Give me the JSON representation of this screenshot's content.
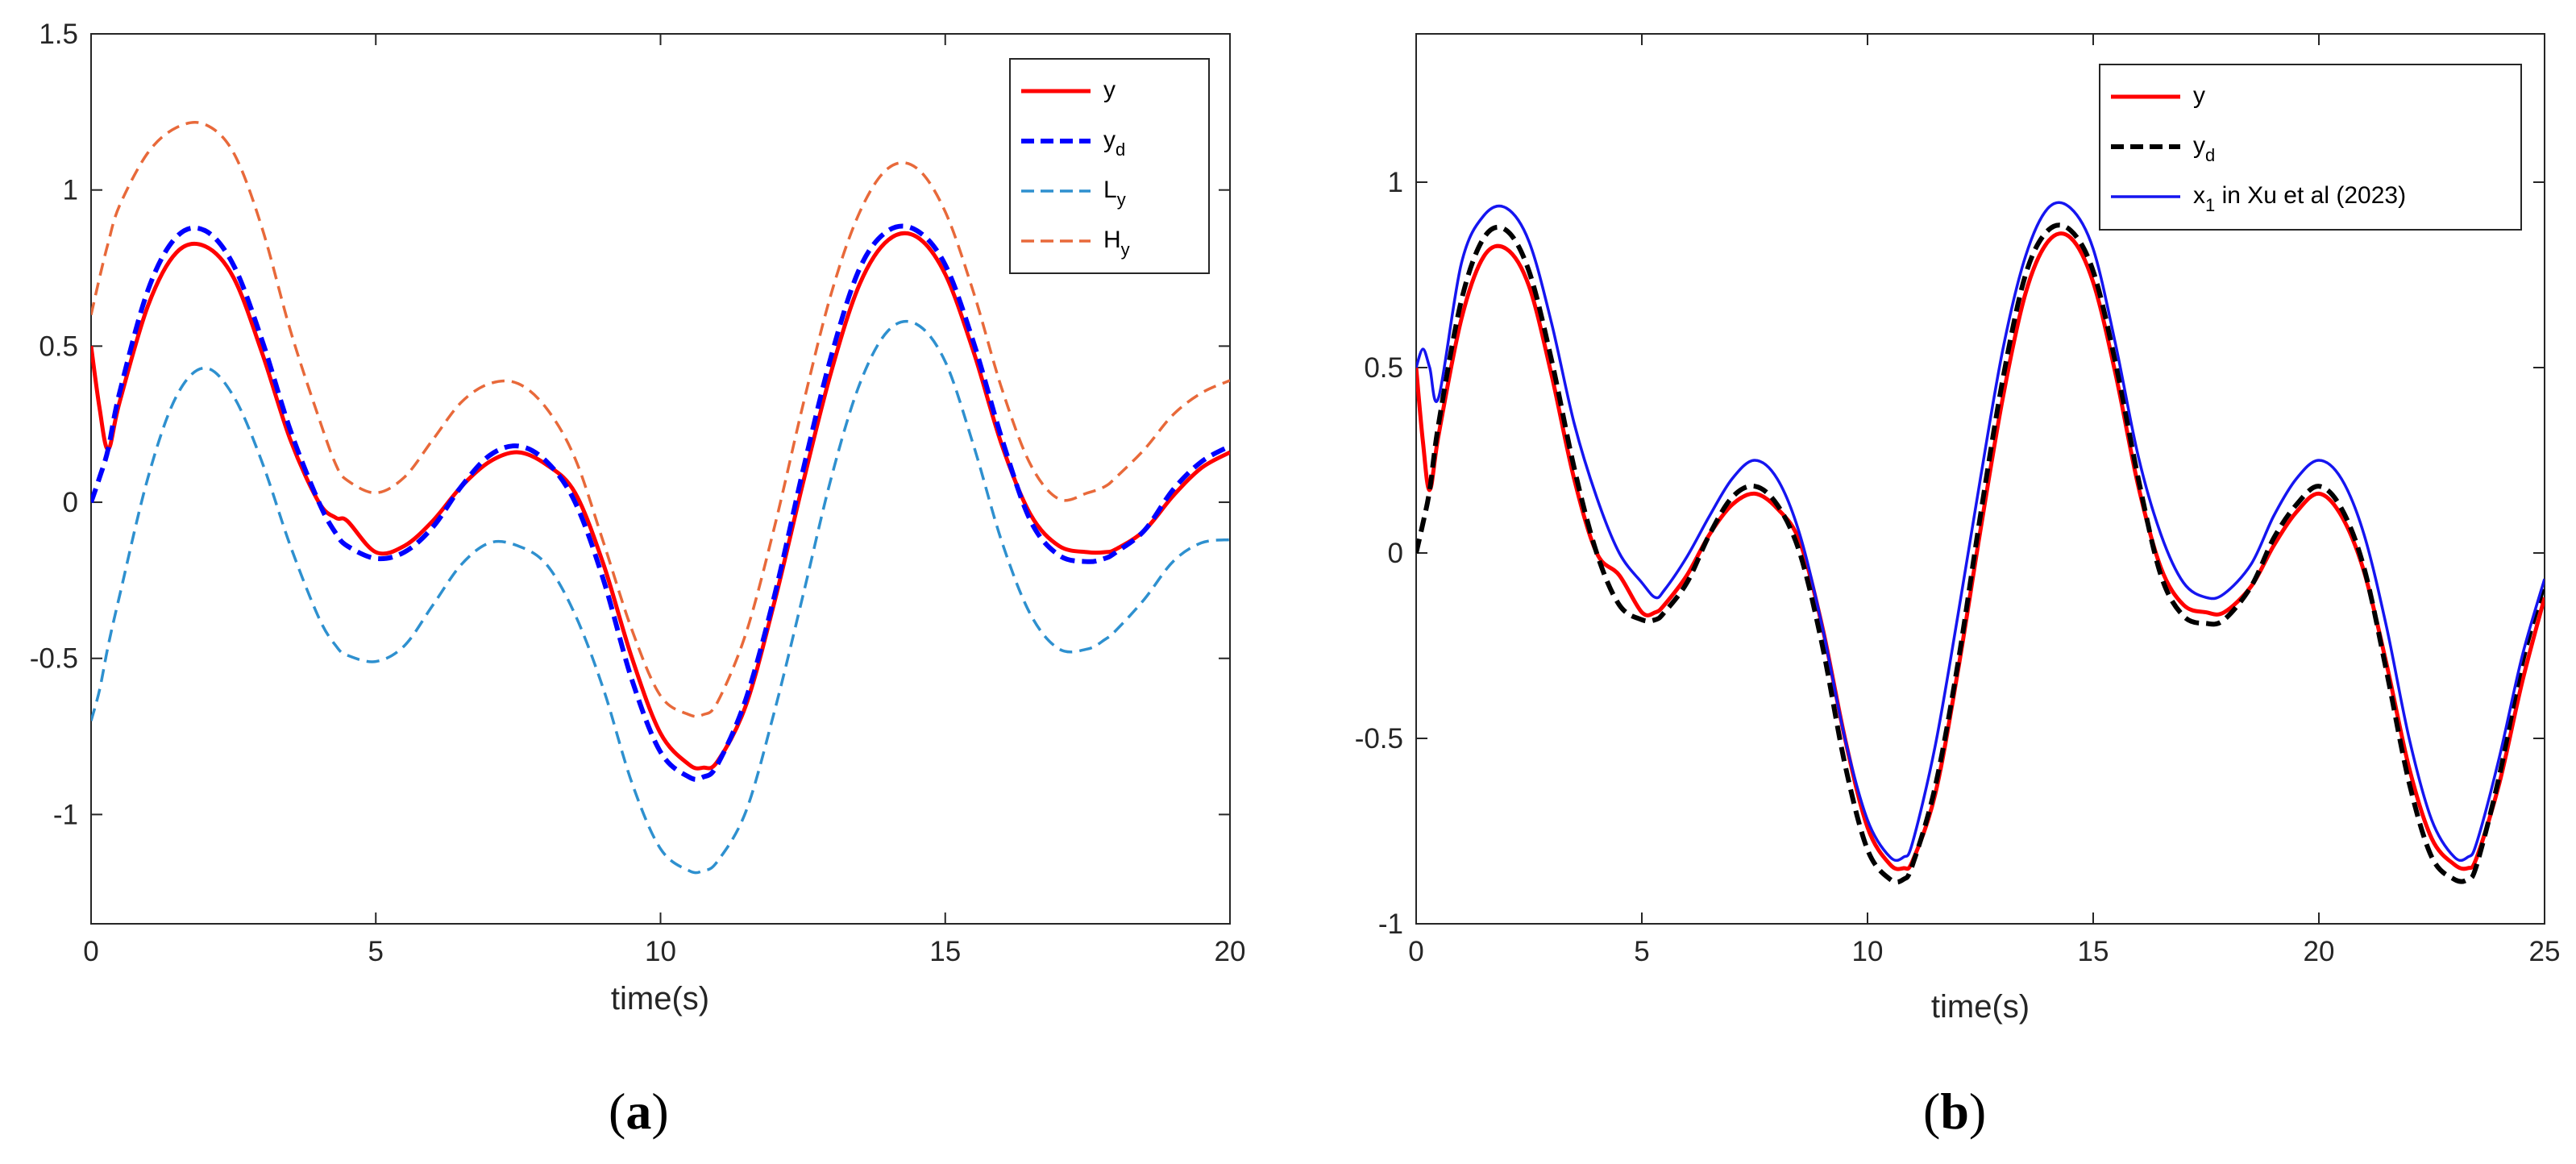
{
  "chart_data": [
    {
      "type": "line",
      "panel": "a",
      "xlabel": "time(s)",
      "ylabel": "",
      "xlim": [
        0,
        20
      ],
      "ylim": [
        -1.35,
        1.5
      ],
      "xticks": [
        0,
        5,
        10,
        15,
        20
      ],
      "xtick_labels": [
        "0",
        "5",
        "10",
        "15",
        "20"
      ],
      "yticks": [
        -1,
        -0.5,
        0,
        0.5,
        1,
        1.5
      ],
      "ytick_labels": [
        "-1",
        "-0.5",
        "0",
        "0.5",
        "1",
        "1.5"
      ],
      "legend_position": "top-right",
      "x": [
        0,
        0.15,
        0.3,
        0.5,
        1,
        1.5,
        2,
        2.5,
        3,
        3.5,
        4,
        4.3,
        4.5,
        5,
        5.5,
        6,
        6.5,
        7,
        7.5,
        8,
        8.5,
        9,
        9.5,
        10,
        10.5,
        10.75,
        11,
        11.5,
        12,
        12.5,
        13,
        13.5,
        14,
        14.5,
        15,
        15.5,
        16,
        16.5,
        17,
        17.5,
        17.8,
        18,
        18.5,
        19,
        19.5,
        20
      ],
      "series": [
        {
          "name": "y",
          "sub": "",
          "color": "#ff0000",
          "style": "solid",
          "values": [
            0.5,
            0.3,
            0.17,
            0.32,
            0.63,
            0.8,
            0.82,
            0.72,
            0.48,
            0.2,
            0.0,
            -0.05,
            -0.06,
            -0.16,
            -0.14,
            -0.06,
            0.05,
            0.13,
            0.16,
            0.12,
            0.03,
            -0.2,
            -0.5,
            -0.74,
            -0.84,
            -0.85,
            -0.83,
            -0.65,
            -0.32,
            0.06,
            0.42,
            0.7,
            0.84,
            0.85,
            0.73,
            0.48,
            0.18,
            -0.04,
            -0.14,
            -0.16,
            -0.16,
            -0.15,
            -0.09,
            0.02,
            0.11,
            0.16
          ]
        },
        {
          "name": "y",
          "sub": "d",
          "color": "#0000ff",
          "style": "dashed",
          "values": [
            0.0,
            0.08,
            0.17,
            0.35,
            0.68,
            0.85,
            0.87,
            0.76,
            0.52,
            0.23,
            0.0,
            -0.1,
            -0.14,
            -0.18,
            -0.16,
            -0.08,
            0.05,
            0.15,
            0.18,
            0.13,
            0.0,
            -0.25,
            -0.57,
            -0.8,
            -0.88,
            -0.88,
            -0.84,
            -0.63,
            -0.3,
            0.1,
            0.47,
            0.75,
            0.87,
            0.87,
            0.76,
            0.51,
            0.2,
            -0.06,
            -0.17,
            -0.19,
            -0.18,
            -0.16,
            -0.09,
            0.04,
            0.13,
            0.18
          ]
        },
        {
          "name": "L",
          "sub": "y",
          "color": "#2e90cf",
          "style": "dashed",
          "values": [
            -0.7,
            -0.6,
            -0.46,
            -0.3,
            0.08,
            0.34,
            0.43,
            0.34,
            0.13,
            -0.14,
            -0.37,
            -0.46,
            -0.49,
            -0.51,
            -0.46,
            -0.33,
            -0.2,
            -0.13,
            -0.14,
            -0.2,
            -0.36,
            -0.6,
            -0.9,
            -1.11,
            -1.18,
            -1.18,
            -1.15,
            -0.99,
            -0.67,
            -0.3,
            0.08,
            0.38,
            0.55,
            0.57,
            0.45,
            0.18,
            -0.13,
            -0.36,
            -0.47,
            -0.47,
            -0.44,
            -0.41,
            -0.31,
            -0.19,
            -0.13,
            -0.12
          ]
        },
        {
          "name": "H",
          "sub": "y",
          "color": "#e8693a",
          "style": "dashed",
          "values": [
            0.6,
            0.72,
            0.83,
            0.95,
            1.12,
            1.2,
            1.21,
            1.12,
            0.88,
            0.55,
            0.27,
            0.12,
            0.07,
            0.03,
            0.08,
            0.2,
            0.32,
            0.38,
            0.38,
            0.3,
            0.14,
            -0.13,
            -0.41,
            -0.62,
            -0.68,
            -0.68,
            -0.64,
            -0.42,
            -0.08,
            0.31,
            0.67,
            0.93,
            1.07,
            1.07,
            0.93,
            0.67,
            0.36,
            0.12,
            0.01,
            0.03,
            0.05,
            0.08,
            0.17,
            0.28,
            0.35,
            0.39
          ]
        }
      ]
    },
    {
      "type": "line",
      "panel": "b",
      "xlabel": "time(s)",
      "ylabel": "",
      "xlim": [
        0,
        25
      ],
      "ylim": [
        -1,
        1.4
      ],
      "xticks": [
        0,
        5,
        10,
        15,
        20,
        25
      ],
      "xtick_labels": [
        "0",
        "5",
        "10",
        "15",
        "20",
        "25"
      ],
      "yticks": [
        -1,
        -0.5,
        0,
        0.5,
        1
      ],
      "ytick_labels": [
        "-1",
        "-0.5",
        "0",
        "0.5",
        "1"
      ],
      "legend_position": "top-right",
      "x": [
        0,
        0.15,
        0.3,
        0.5,
        1,
        1.5,
        2,
        2.5,
        3,
        3.5,
        4,
        4.5,
        5,
        5.3,
        5.5,
        6,
        6.5,
        7,
        7.5,
        8,
        8.5,
        9,
        9.5,
        10,
        10.5,
        10.8,
        11,
        11.5,
        12,
        12.5,
        13,
        13.5,
        14,
        14.5,
        15,
        15.5,
        16,
        16.5,
        17,
        17.5,
        17.9,
        18.5,
        19,
        19.5,
        20,
        20.5,
        21,
        21.5,
        22,
        22.5,
        23,
        23.3,
        23.5,
        24,
        24.5,
        25
      ],
      "series": [
        {
          "name": "y",
          "sub": "",
          "color": "#ff0000",
          "style": "solid",
          "values": [
            0.5,
            0.3,
            0.17,
            0.32,
            0.63,
            0.8,
            0.82,
            0.72,
            0.48,
            0.2,
            0.0,
            -0.06,
            -0.16,
            -0.16,
            -0.14,
            -0.06,
            0.05,
            0.13,
            0.16,
            0.12,
            0.03,
            -0.2,
            -0.5,
            -0.74,
            -0.84,
            -0.85,
            -0.83,
            -0.65,
            -0.32,
            0.06,
            0.42,
            0.7,
            0.84,
            0.85,
            0.73,
            0.48,
            0.18,
            -0.04,
            -0.14,
            -0.16,
            -0.16,
            -0.09,
            0.02,
            0.11,
            0.16,
            0.1,
            -0.05,
            -0.3,
            -0.58,
            -0.77,
            -0.84,
            -0.85,
            -0.82,
            -0.62,
            -0.35,
            -0.12
          ]
        },
        {
          "name": "y",
          "sub": "d",
          "color": "#000000",
          "style": "dashed",
          "values": [
            0.0,
            0.08,
            0.17,
            0.35,
            0.68,
            0.85,
            0.87,
            0.76,
            0.52,
            0.23,
            0.0,
            -0.14,
            -0.18,
            -0.18,
            -0.16,
            -0.08,
            0.05,
            0.15,
            0.18,
            0.13,
            0.0,
            -0.25,
            -0.57,
            -0.8,
            -0.88,
            -0.88,
            -0.84,
            -0.63,
            -0.3,
            0.1,
            0.47,
            0.75,
            0.87,
            0.87,
            0.76,
            0.51,
            0.2,
            -0.06,
            -0.17,
            -0.19,
            -0.18,
            -0.09,
            0.04,
            0.13,
            0.18,
            0.12,
            -0.04,
            -0.32,
            -0.62,
            -0.82,
            -0.88,
            -0.88,
            -0.84,
            -0.6,
            -0.3,
            -0.08
          ]
        },
        {
          "name": "x",
          "sub": "1",
          "suffix": " in Xu et al (2023)",
          "color": "#1515f0",
          "style": "solid",
          "values": [
            0.5,
            0.55,
            0.5,
            0.42,
            0.78,
            0.91,
            0.93,
            0.84,
            0.62,
            0.35,
            0.15,
            0.0,
            -0.08,
            -0.12,
            -0.1,
            -0.01,
            0.1,
            0.2,
            0.25,
            0.2,
            0.05,
            -0.2,
            -0.5,
            -0.72,
            -0.82,
            -0.82,
            -0.78,
            -0.52,
            -0.17,
            0.2,
            0.55,
            0.8,
            0.93,
            0.93,
            0.82,
            0.56,
            0.26,
            0.05,
            -0.08,
            -0.12,
            -0.11,
            -0.03,
            0.1,
            0.2,
            0.25,
            0.2,
            0.05,
            -0.2,
            -0.5,
            -0.72,
            -0.82,
            -0.82,
            -0.78,
            -0.55,
            -0.28,
            -0.07
          ]
        }
      ]
    }
  ],
  "captions": {
    "a": "(a)",
    "b": "(b)"
  }
}
